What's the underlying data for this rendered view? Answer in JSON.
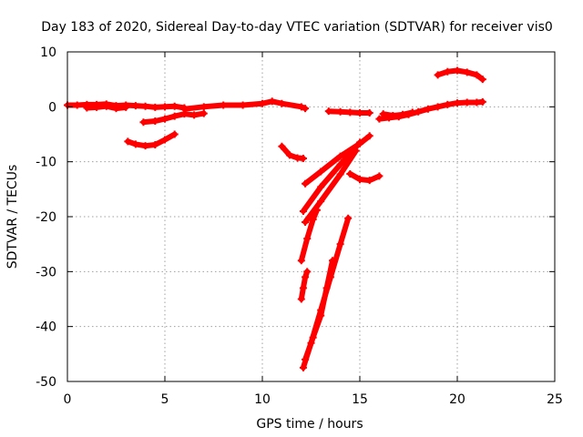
{
  "chart_data": {
    "type": "scatter",
    "title": "Day 183 of 2020, Sidereal Day-to-day VTEC variation (SDTVAR) for receiver vis0",
    "xlabel": "GPS time / hours",
    "ylabel": "SDTVAR / TECUs",
    "xlim": [
      0,
      25
    ],
    "ylim": [
      -50,
      10
    ],
    "x_ticks": [
      "0",
      "5",
      "10",
      "15",
      "20",
      "25"
    ],
    "y_ticks": [
      "10",
      "0",
      "-10",
      "-20",
      "-30",
      "-40",
      "-50"
    ],
    "grid": true,
    "marker": "+",
    "color": "#ff0000",
    "series": [
      {
        "x": [
          0.0,
          0.5,
          1.0,
          1.5,
          2.0,
          2.5,
          3.0,
          3.5,
          4.0,
          4.5,
          5.0,
          5.5,
          6.0
        ],
        "y": [
          0.3,
          0.3,
          0.4,
          0.4,
          0.5,
          0.2,
          0.3,
          0.2,
          0.1,
          -0.1,
          0.0,
          0.1,
          -0.2
        ]
      },
      {
        "x": [
          1.0,
          1.5,
          2.0,
          2.5,
          3.0
        ],
        "y": [
          -0.2,
          -0.1,
          0.1,
          -0.3,
          -0.1
        ]
      },
      {
        "x": [
          3.9,
          4.5,
          5.0,
          5.5,
          6.0,
          6.5,
          7.0
        ],
        "y": [
          -2.8,
          -2.6,
          -2.2,
          -1.7,
          -1.3,
          -1.5,
          -1.2
        ]
      },
      {
        "x": [
          6.0,
          7.0,
          8.0,
          9.0,
          10.0,
          10.5,
          11.0,
          12.0,
          12.2
        ],
        "y": [
          -0.4,
          0.0,
          0.3,
          0.3,
          0.6,
          1.0,
          0.6,
          0.0,
          -0.3
        ]
      },
      {
        "x": [
          3.1,
          3.5,
          4.0,
          4.5,
          5.0,
          5.5
        ],
        "y": [
          -6.3,
          -6.8,
          -7.1,
          -6.9,
          -6.0,
          -5.0
        ]
      },
      {
        "x": [
          11.0,
          11.4,
          11.8,
          12.1
        ],
        "y": [
          -7.2,
          -8.8,
          -9.3,
          -9.4
        ]
      },
      {
        "x": [
          12.2,
          13.0,
          14.0,
          15.0,
          15.5
        ],
        "y": [
          -14.0,
          -11.8,
          -9.0,
          -6.7,
          -5.3
        ]
      },
      {
        "x": [
          12.1,
          13.0,
          14.0,
          15.0
        ],
        "y": [
          -19.0,
          -14.6,
          -10.5,
          -6.5
        ]
      },
      {
        "x": [
          12.2,
          13.0,
          14.0,
          14.8
        ],
        "y": [
          -21.0,
          -17.2,
          -12.3,
          -8.0
        ]
      },
      {
        "x": [
          12.0,
          12.3,
          12.6,
          12.8
        ],
        "y": [
          -28.0,
          -24.0,
          -20.5,
          -18.8
        ]
      },
      {
        "x": [
          12.0,
          12.1,
          12.2,
          12.3
        ],
        "y": [
          -35.0,
          -33.0,
          -31.0,
          -30.0
        ]
      },
      {
        "x": [
          12.1,
          12.5,
          13.0,
          13.5,
          14.0,
          14.4
        ],
        "y": [
          -47.5,
          -43.0,
          -37.0,
          -31.0,
          -25.0,
          -20.3
        ]
      },
      {
        "x": [
          12.2,
          12.6,
          13.0,
          13.3,
          13.6
        ],
        "y": [
          -46.0,
          -42.0,
          -38.0,
          -33.0,
          -28.0
        ]
      },
      {
        "x": [
          13.4,
          14.0,
          14.5,
          15.0,
          15.5
        ],
        "y": [
          -0.8,
          -0.9,
          -1.0,
          -1.1,
          -1.1
        ]
      },
      {
        "x": [
          14.5,
          15.0,
          15.5,
          16.0
        ],
        "y": [
          -12.2,
          -13.2,
          -13.4,
          -12.6
        ]
      },
      {
        "x": [
          16.0,
          16.5,
          17.0,
          17.5,
          18.0,
          18.5,
          19.0,
          19.5,
          20.0,
          20.5,
          21.0,
          21.3
        ],
        "y": [
          -2.2,
          -2.0,
          -1.8,
          -1.4,
          -0.9,
          -0.4,
          0.0,
          0.4,
          0.7,
          0.8,
          0.8,
          0.9
        ]
      },
      {
        "x": [
          16.2,
          16.7,
          17.2,
          17.7
        ],
        "y": [
          -1.3,
          -1.6,
          -1.4,
          -1.0
        ]
      },
      {
        "x": [
          19.0,
          19.5,
          20.0,
          20.5,
          21.0,
          21.3
        ],
        "y": [
          5.8,
          6.4,
          6.6,
          6.3,
          5.8,
          5.0
        ]
      }
    ]
  }
}
